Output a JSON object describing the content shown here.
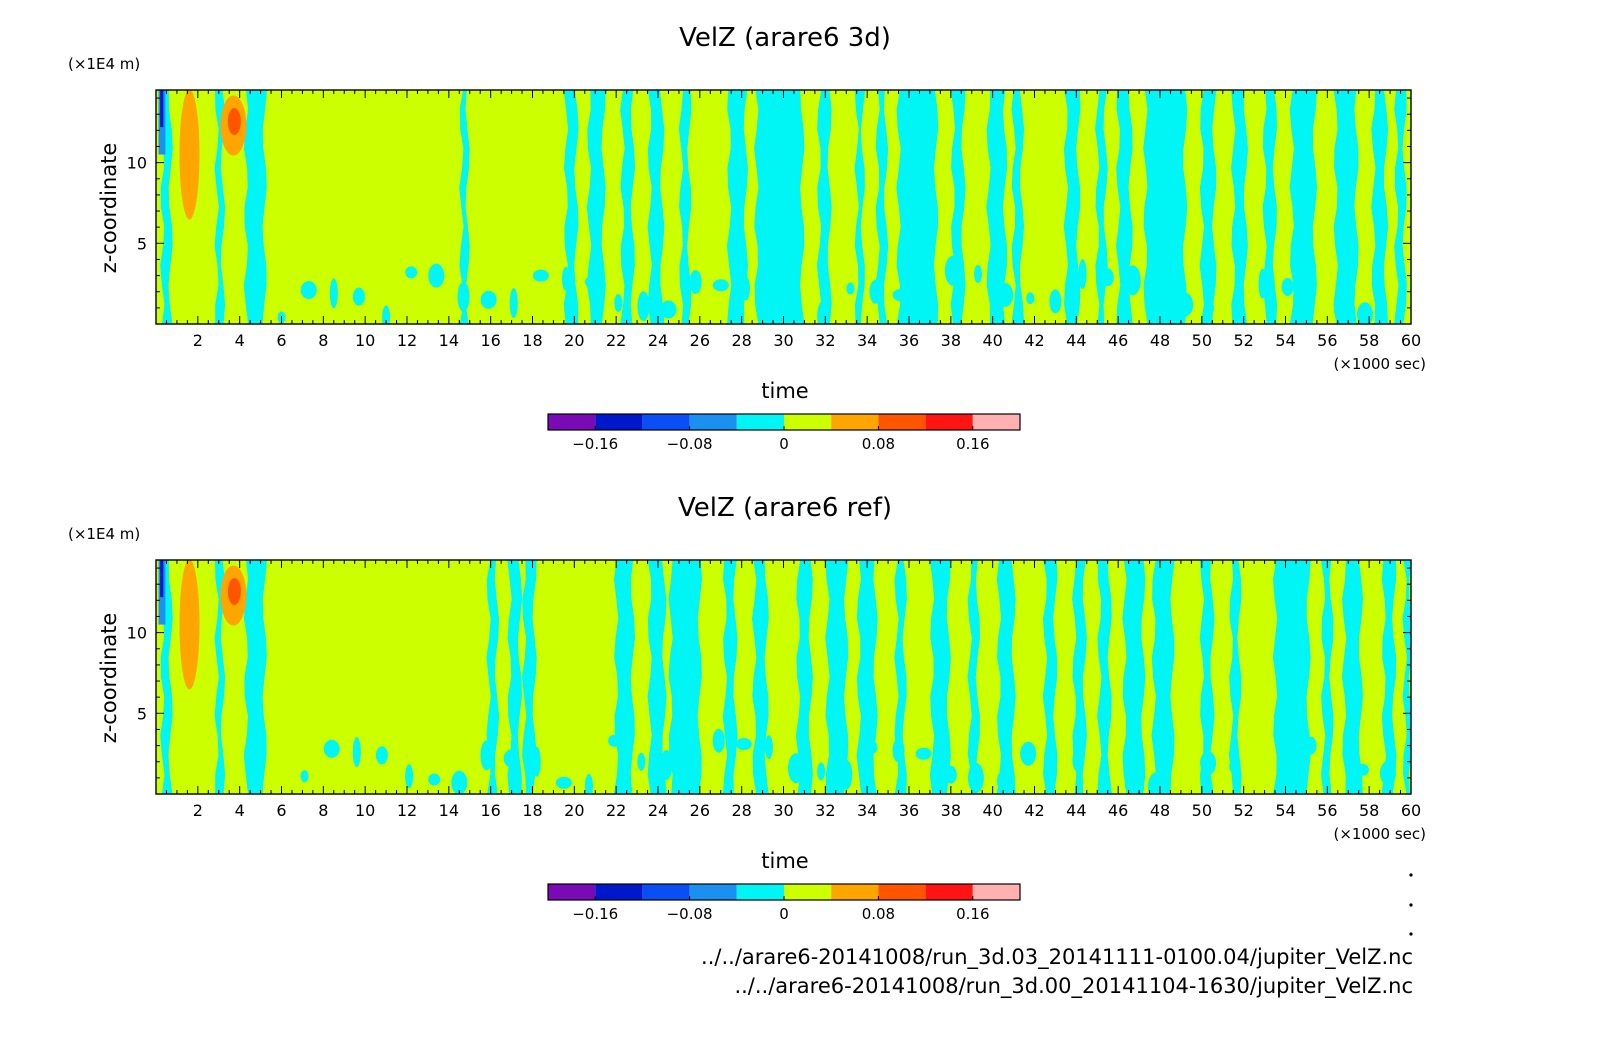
{
  "chart_data": [
    {
      "type": "heatmap",
      "title": "VelZ (arare6 3d)",
      "xlabel": "time",
      "ylabel": "z-coordinate",
      "x_unit": "(×1000 sec)",
      "y_unit": "(×1E4 m)",
      "xlim": [
        0,
        60
      ],
      "ylim": [
        0,
        14.5
      ],
      "x_ticks": [
        2,
        4,
        6,
        8,
        10,
        12,
        14,
        16,
        18,
        20,
        22,
        24,
        26,
        28,
        30,
        32,
        34,
        36,
        38,
        40,
        42,
        44,
        46,
        48,
        50,
        52,
        54,
        56,
        58,
        60
      ],
      "x_tick_labels": [
        "2",
        "4",
        "6",
        "8",
        "10",
        "12",
        "14",
        "16",
        "18",
        "20",
        "22",
        "24",
        "26",
        "28",
        "30",
        "32",
        "34",
        "36",
        "38",
        "40",
        "42",
        "44",
        "46",
        "48",
        "50",
        "52",
        "54",
        "56",
        "58",
        "60"
      ],
      "y_ticks": [
        5,
        10
      ],
      "y_tick_labels": [
        "5",
        "10"
      ],
      "background_level": "0 to 0.04",
      "negative_bands_x": [
        [
          0.3,
          0.7
        ],
        [
          2.9,
          3.2
        ],
        [
          4.3,
          5.2
        ],
        [
          14.6,
          14.9
        ],
        [
          19.6,
          20.1
        ],
        [
          20.7,
          21.4
        ],
        [
          22.3,
          22.8
        ],
        [
          23.6,
          24.2
        ],
        [
          25.1,
          25.5
        ],
        [
          27.4,
          28.2
        ],
        [
          28.7,
          30.9
        ],
        [
          31.7,
          32.2
        ],
        [
          33.5,
          33.8
        ],
        [
          34.5,
          34.9
        ],
        [
          35.5,
          37.3
        ],
        [
          38.1,
          38.6
        ],
        [
          39.8,
          40.6
        ],
        [
          41.0,
          41.4
        ],
        [
          43.5,
          44.1
        ],
        [
          45.0,
          45.4
        ],
        [
          46.0,
          46.6
        ],
        [
          47.3,
          49.2
        ],
        [
          50.0,
          50.6
        ],
        [
          51.5,
          52.1
        ],
        [
          53.0,
          53.5
        ],
        [
          54.3,
          55.4
        ],
        [
          56.4,
          57.4
        ],
        [
          58.2,
          58.8
        ],
        [
          59.3,
          59.7
        ]
      ],
      "positive_cells": [
        {
          "x": 1.6,
          "z": 10.5,
          "value": 0.06
        },
        {
          "x": 3.7,
          "z": 12.3,
          "value": 0.07
        }
      ]
    },
    {
      "type": "heatmap",
      "title": "VelZ (arare6 ref)",
      "xlabel": "time",
      "ylabel": "z-coordinate",
      "x_unit": "(×1000 sec)",
      "y_unit": "(×1E4 m)",
      "xlim": [
        0,
        60
      ],
      "ylim": [
        0,
        14.5
      ],
      "x_ticks": [
        2,
        4,
        6,
        8,
        10,
        12,
        14,
        16,
        18,
        20,
        22,
        24,
        26,
        28,
        30,
        32,
        34,
        36,
        38,
        40,
        42,
        44,
        46,
        48,
        50,
        52,
        54,
        56,
        58,
        60
      ],
      "x_tick_labels": [
        "2",
        "4",
        "6",
        "8",
        "10",
        "12",
        "14",
        "16",
        "18",
        "20",
        "22",
        "24",
        "26",
        "28",
        "30",
        "32",
        "34",
        "36",
        "38",
        "40",
        "42",
        "44",
        "46",
        "48",
        "50",
        "52",
        "54",
        "56",
        "58",
        "60"
      ],
      "y_ticks": [
        5,
        10
      ],
      "y_tick_labels": [
        "5",
        "10"
      ],
      "background_level": "0 to 0.04",
      "negative_bands_x": [
        [
          0.3,
          0.7
        ],
        [
          2.9,
          3.2
        ],
        [
          4.3,
          5.2
        ],
        [
          15.9,
          16.3
        ],
        [
          16.9,
          17.4
        ],
        [
          17.6,
          18.1
        ],
        [
          22.0,
          22.8
        ],
        [
          23.6,
          24.3
        ],
        [
          24.6,
          26.0
        ],
        [
          27.2,
          27.7
        ],
        [
          28.6,
          29.2
        ],
        [
          30.7,
          31.3
        ],
        [
          32.1,
          33.0
        ],
        [
          33.6,
          34.4
        ],
        [
          35.4,
          35.8
        ],
        [
          37.1,
          37.9
        ],
        [
          38.9,
          39.3
        ],
        [
          40.3,
          41.0
        ],
        [
          42.5,
          43.0
        ],
        [
          43.9,
          44.4
        ],
        [
          45.1,
          45.6
        ],
        [
          46.3,
          47.2
        ],
        [
          47.7,
          48.6
        ],
        [
          50.0,
          50.5
        ],
        [
          51.4,
          51.8
        ],
        [
          53.5,
          55.1
        ],
        [
          55.8,
          56.2
        ],
        [
          56.8,
          57.6
        ],
        [
          58.7,
          59.2
        ],
        [
          59.7,
          60.0
        ]
      ],
      "positive_cells": [
        {
          "x": 1.6,
          "z": 10.5,
          "value": 0.06
        },
        {
          "x": 3.7,
          "z": 12.3,
          "value": 0.07
        }
      ]
    }
  ],
  "colorbar": {
    "colors": [
      "#7a0ab5",
      "#0018cc",
      "#0a4ef5",
      "#1a90f0",
      "#00f5f5",
      "#ccff00",
      "#ffa500",
      "#ff5500",
      "#ff1414",
      "#ffb0b0"
    ],
    "tick_labels": [
      "−0.16",
      "−0.08",
      "0",
      "0.08",
      "0.16"
    ]
  },
  "palette": {
    "background_zero": "#ccff00",
    "negative_small": "#00f5f5",
    "negative_mid": "#1a90f0",
    "negative_strong": "#0018cc",
    "positive_small": "#ffa500",
    "positive_mid": "#ff5500"
  },
  "footnotes": [
    "../../arare6-20141008/run_3d.03_20141111-0100.04/jupiter_VelZ.nc",
    "../../arare6-20141008/run_3d.00_20141104-1630/jupiter_VelZ.nc"
  ]
}
